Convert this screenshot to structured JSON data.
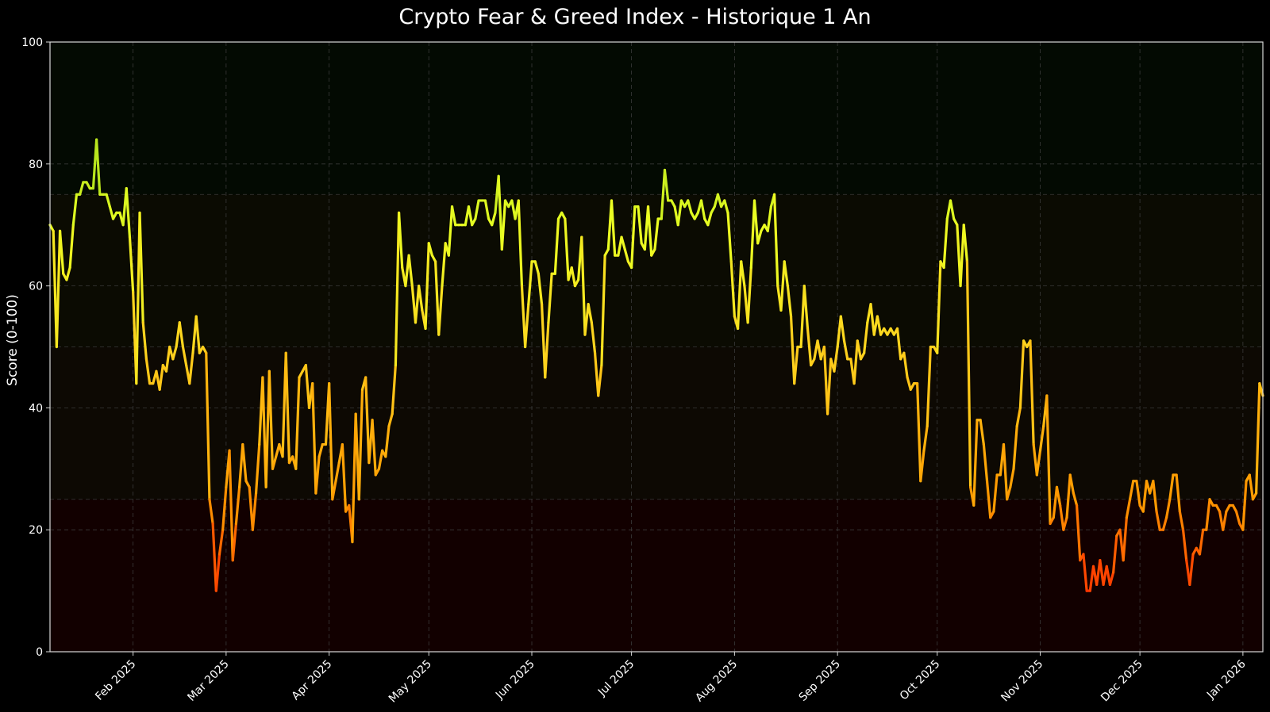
{
  "chart_data": {
    "type": "line",
    "title": "Crypto Fear & Greed Index - Historique 1 An",
    "xlabel": "",
    "ylabel": "Score (0-100)",
    "ylim": [
      0,
      100
    ],
    "xlim": [
      "2025-01-07",
      "2026-01-07"
    ],
    "y_ticks": [
      0,
      20,
      40,
      60,
      80,
      100
    ],
    "x_ticks": [
      {
        "date": "2025-02-01",
        "label": "Feb 2025"
      },
      {
        "date": "2025-03-01",
        "label": "Mar 2025"
      },
      {
        "date": "2025-04-01",
        "label": "Apr 2025"
      },
      {
        "date": "2025-05-01",
        "label": "May 2025"
      },
      {
        "date": "2025-06-01",
        "label": "Jun 2025"
      },
      {
        "date": "2025-07-01",
        "label": "Jul 2025"
      },
      {
        "date": "2025-08-01",
        "label": "Aug 2025"
      },
      {
        "date": "2025-09-01",
        "label": "Sep 2025"
      },
      {
        "date": "2025-10-01",
        "label": "Oct 2025"
      },
      {
        "date": "2025-11-01",
        "label": "Nov 2025"
      },
      {
        "date": "2025-12-01",
        "label": "Dec 2025"
      },
      {
        "date": "2026-01-01",
        "label": "Jan 2026"
      }
    ],
    "grid": true,
    "legend": "none",
    "zones": [
      {
        "from": 0,
        "to": 25,
        "color": "#120000"
      },
      {
        "from": 25,
        "to": 50,
        "color": "#0d0903"
      },
      {
        "from": 50,
        "to": 75,
        "color": "#0b0b02"
      },
      {
        "from": 75,
        "to": 100,
        "color": "#030a02"
      }
    ],
    "colors": {
      "background": "#000000",
      "extreme_fear": "#ff3300",
      "fear": "#ff9900",
      "neutral": "#ffd21e",
      "greed": "#eaff22",
      "extreme_greed": "#9dd81a"
    },
    "series": [
      {
        "x": [
          "2025-01-07",
          "2025-01-08",
          "2025-01-09",
          "2025-01-10",
          "2025-01-11",
          "2025-01-12",
          "2025-01-13",
          "2025-01-14",
          "2025-01-15",
          "2025-01-16",
          "2025-01-17",
          "2025-01-18",
          "2025-01-19",
          "2025-01-20",
          "2025-01-21",
          "2025-01-22",
          "2025-01-23",
          "2025-01-24",
          "2025-01-25",
          "2025-01-26",
          "2025-01-27",
          "2025-01-28",
          "2025-01-29",
          "2025-01-30",
          "2025-01-31",
          "2025-02-01",
          "2025-02-02",
          "2025-02-03",
          "2025-02-04",
          "2025-02-05",
          "2025-02-06",
          "2025-02-07",
          "2025-02-08",
          "2025-02-09",
          "2025-02-10",
          "2025-02-11",
          "2025-02-12",
          "2025-02-13",
          "2025-02-14",
          "2025-02-15",
          "2025-02-16",
          "2025-02-17",
          "2025-02-18",
          "2025-02-19",
          "2025-02-20",
          "2025-02-21",
          "2025-02-22",
          "2025-02-23",
          "2025-02-24",
          "2025-02-25",
          "2025-02-26",
          "2025-02-27",
          "2025-02-28",
          "2025-03-01",
          "2025-03-02",
          "2025-03-03",
          "2025-03-04",
          "2025-03-05",
          "2025-03-06",
          "2025-03-07",
          "2025-03-08",
          "2025-03-09",
          "2025-03-10",
          "2025-03-11",
          "2025-03-12",
          "2025-03-13",
          "2025-03-14",
          "2025-03-15",
          "2025-03-16",
          "2025-03-17",
          "2025-03-18",
          "2025-03-19",
          "2025-03-20",
          "2025-03-21",
          "2025-03-22",
          "2025-03-23",
          "2025-03-24",
          "2025-03-25",
          "2025-03-26",
          "2025-03-27",
          "2025-03-28",
          "2025-03-29",
          "2025-03-30",
          "2025-03-31",
          "2025-04-01",
          "2025-04-02",
          "2025-04-03",
          "2025-04-04",
          "2025-04-05",
          "2025-04-06",
          "2025-04-07",
          "2025-04-08",
          "2025-04-09",
          "2025-04-10",
          "2025-04-11",
          "2025-04-12",
          "2025-04-13",
          "2025-04-14",
          "2025-04-15",
          "2025-04-16",
          "2025-04-17",
          "2025-04-18",
          "2025-04-19",
          "2025-04-20",
          "2025-04-21",
          "2025-04-22",
          "2025-04-23",
          "2025-04-24",
          "2025-04-25",
          "2025-04-26",
          "2025-04-27",
          "2025-04-28",
          "2025-04-29",
          "2025-04-30",
          "2025-05-01",
          "2025-05-02",
          "2025-05-03",
          "2025-05-04",
          "2025-05-05",
          "2025-05-06",
          "2025-05-07",
          "2025-05-08",
          "2025-05-09",
          "2025-05-10",
          "2025-05-11",
          "2025-05-12",
          "2025-05-13",
          "2025-05-14",
          "2025-05-15",
          "2025-05-16",
          "2025-05-17",
          "2025-05-18",
          "2025-05-19",
          "2025-05-20",
          "2025-05-21",
          "2025-05-22",
          "2025-05-23",
          "2025-05-24",
          "2025-05-25",
          "2025-05-26",
          "2025-05-27",
          "2025-05-28",
          "2025-05-29",
          "2025-05-30",
          "2025-05-31",
          "2025-06-01",
          "2025-06-02",
          "2025-06-03",
          "2025-06-04",
          "2025-06-05",
          "2025-06-06",
          "2025-06-07",
          "2025-06-08",
          "2025-06-09",
          "2025-06-10",
          "2025-06-11",
          "2025-06-12",
          "2025-06-13",
          "2025-06-14",
          "2025-06-15",
          "2025-06-16",
          "2025-06-17",
          "2025-06-18",
          "2025-06-19",
          "2025-06-20",
          "2025-06-21",
          "2025-06-22",
          "2025-06-23",
          "2025-06-24",
          "2025-06-25",
          "2025-06-26",
          "2025-06-27",
          "2025-06-28",
          "2025-06-29",
          "2025-06-30",
          "2025-07-01",
          "2025-07-02",
          "2025-07-03",
          "2025-07-04",
          "2025-07-05",
          "2025-07-06",
          "2025-07-07",
          "2025-07-08",
          "2025-07-09",
          "2025-07-10",
          "2025-07-11",
          "2025-07-12",
          "2025-07-13",
          "2025-07-14",
          "2025-07-15",
          "2025-07-16",
          "2025-07-17",
          "2025-07-18",
          "2025-07-19",
          "2025-07-20",
          "2025-07-21",
          "2025-07-22",
          "2025-07-23",
          "2025-07-24",
          "2025-07-25",
          "2025-07-26",
          "2025-07-27",
          "2025-07-28",
          "2025-07-29",
          "2025-07-30",
          "2025-07-31",
          "2025-08-01",
          "2025-08-02",
          "2025-08-03",
          "2025-08-04",
          "2025-08-05",
          "2025-08-06",
          "2025-08-07",
          "2025-08-08",
          "2025-08-09",
          "2025-08-10",
          "2025-08-11",
          "2025-08-12",
          "2025-08-13",
          "2025-08-14",
          "2025-08-15",
          "2025-08-16",
          "2025-08-17",
          "2025-08-18",
          "2025-08-19",
          "2025-08-20",
          "2025-08-21",
          "2025-08-22",
          "2025-08-23",
          "2025-08-24",
          "2025-08-25",
          "2025-08-26",
          "2025-08-27",
          "2025-08-28",
          "2025-08-29",
          "2025-08-30",
          "2025-08-31",
          "2025-09-01",
          "2025-09-02",
          "2025-09-03",
          "2025-09-04",
          "2025-09-05",
          "2025-09-06",
          "2025-09-07",
          "2025-09-08",
          "2025-09-09",
          "2025-09-10",
          "2025-09-11",
          "2025-09-12",
          "2025-09-13",
          "2025-09-14",
          "2025-09-15",
          "2025-09-16",
          "2025-09-17",
          "2025-09-18",
          "2025-09-19",
          "2025-09-20",
          "2025-09-21",
          "2025-09-22",
          "2025-09-23",
          "2025-09-24",
          "2025-09-25",
          "2025-09-26",
          "2025-09-27",
          "2025-09-28",
          "2025-09-29",
          "2025-09-30",
          "2025-10-01",
          "2025-10-02",
          "2025-10-03",
          "2025-10-04",
          "2025-10-05",
          "2025-10-06",
          "2025-10-07",
          "2025-10-08",
          "2025-10-09",
          "2025-10-10",
          "2025-10-11",
          "2025-10-12",
          "2025-10-13",
          "2025-10-14",
          "2025-10-15",
          "2025-10-16",
          "2025-10-17",
          "2025-10-18",
          "2025-10-19",
          "2025-10-20",
          "2025-10-21",
          "2025-10-22",
          "2025-10-23",
          "2025-10-24",
          "2025-10-25",
          "2025-10-26",
          "2025-10-27",
          "2025-10-28",
          "2025-10-29",
          "2025-10-30",
          "2025-10-31",
          "2025-11-01",
          "2025-11-02",
          "2025-11-03",
          "2025-11-04",
          "2025-11-05",
          "2025-11-06",
          "2025-11-07",
          "2025-11-08",
          "2025-11-09",
          "2025-11-10",
          "2025-11-11",
          "2025-11-12",
          "2025-11-13",
          "2025-11-14",
          "2025-11-15",
          "2025-11-16",
          "2025-11-17",
          "2025-11-18",
          "2025-11-19",
          "2025-11-20",
          "2025-11-21",
          "2025-11-22",
          "2025-11-23",
          "2025-11-24",
          "2025-11-25",
          "2025-11-26",
          "2025-11-27",
          "2025-11-28",
          "2025-11-29",
          "2025-11-30",
          "2025-12-01",
          "2025-12-02",
          "2025-12-03",
          "2025-12-04",
          "2025-12-05",
          "2025-12-06",
          "2025-12-07",
          "2025-12-08",
          "2025-12-09",
          "2025-12-10",
          "2025-12-11",
          "2025-12-12",
          "2025-12-13",
          "2025-12-14",
          "2025-12-15",
          "2025-12-16",
          "2025-12-17",
          "2025-12-18",
          "2025-12-19",
          "2025-12-20",
          "2025-12-21",
          "2025-12-22",
          "2025-12-23",
          "2025-12-24",
          "2025-12-25",
          "2025-12-26",
          "2025-12-27",
          "2025-12-28",
          "2025-12-29",
          "2025-12-30",
          "2025-12-31",
          "2026-01-01",
          "2026-01-02",
          "2026-01-03",
          "2026-01-04",
          "2026-01-05",
          "2026-01-06",
          "2026-01-07"
        ],
        "y": [
          70,
          69,
          50,
          69,
          62,
          61,
          63,
          70,
          75,
          75,
          77,
          77,
          76,
          76,
          84,
          75,
          75,
          75,
          73,
          71,
          72,
          72,
          70,
          76,
          68,
          59,
          44,
          72,
          54,
          48,
          44,
          44,
          46,
          43,
          47,
          46,
          50,
          48,
          50,
          54,
          50,
          47,
          44,
          49,
          55,
          49,
          50,
          49,
          25,
          21,
          10,
          16,
          20,
          27,
          33,
          15,
          21,
          27,
          34,
          28,
          27,
          20,
          26,
          34,
          45,
          27,
          46,
          30,
          32,
          34,
          32,
          49,
          31,
          32,
          30,
          45,
          46,
          47,
          40,
          44,
          26,
          32,
          34,
          34,
          44,
          25,
          28,
          31,
          34,
          23,
          24,
          18,
          39,
          25,
          43,
          45,
          31,
          38,
          29,
          30,
          33,
          32,
          37,
          39,
          47,
          72,
          63,
          60,
          65,
          60,
          54,
          60,
          56,
          53,
          67,
          65,
          64,
          52,
          60,
          67,
          65,
          73,
          70,
          70,
          70,
          70,
          73,
          70,
          71,
          74,
          74,
          74,
          71,
          70,
          72,
          78,
          66,
          74,
          73,
          74,
          71,
          74,
          60,
          50,
          57,
          64,
          64,
          62,
          57,
          45,
          54,
          62,
          62,
          71,
          72,
          71,
          61,
          63,
          60,
          61,
          68,
          52,
          57,
          54,
          49,
          42,
          47,
          65,
          66,
          74,
          65,
          65,
          68,
          66,
          64,
          63,
          73,
          73,
          67,
          66,
          73,
          65,
          66,
          71,
          71,
          79,
          74,
          74,
          73,
          70,
          74,
          73,
          74,
          72,
          71,
          72,
          74,
          71,
          70,
          72,
          73,
          75,
          73,
          74,
          72,
          64,
          55,
          53,
          64,
          60,
          54,
          63,
          74,
          67,
          69,
          70,
          69,
          73,
          75,
          60,
          56,
          64,
          60,
          55,
          44,
          50,
          50,
          60,
          53,
          47,
          48,
          51,
          48,
          50,
          39,
          48,
          46,
          50,
          55,
          51,
          48,
          48,
          44,
          51,
          48,
          49,
          54,
          57,
          52,
          55,
          52,
          53,
          52,
          53,
          52,
          53,
          48,
          49,
          45,
          43,
          44,
          44,
          28,
          33,
          37,
          50,
          50,
          49,
          64,
          63,
          71,
          74,
          71,
          70,
          60,
          70,
          64,
          27,
          24,
          38,
          38,
          34,
          28,
          22,
          23,
          29,
          29,
          34,
          25,
          27,
          30,
          37,
          40,
          51,
          50,
          51,
          34,
          29,
          33,
          37,
          42,
          21,
          22,
          27,
          24,
          20,
          22,
          29,
          26,
          24,
          15,
          16,
          10,
          10,
          14,
          11,
          15,
          11,
          14,
          11,
          13,
          19,
          20,
          15,
          22,
          25,
          28,
          28,
          24,
          23,
          28,
          26,
          28,
          23,
          20,
          20,
          22,
          25,
          29,
          29,
          23,
          20,
          15,
          11,
          16,
          17,
          16,
          20,
          20,
          25,
          24,
          24,
          23,
          20,
          23,
          24,
          24,
          23,
          21,
          20,
          28,
          29,
          25,
          26,
          44,
          42
        ]
      }
    ]
  }
}
